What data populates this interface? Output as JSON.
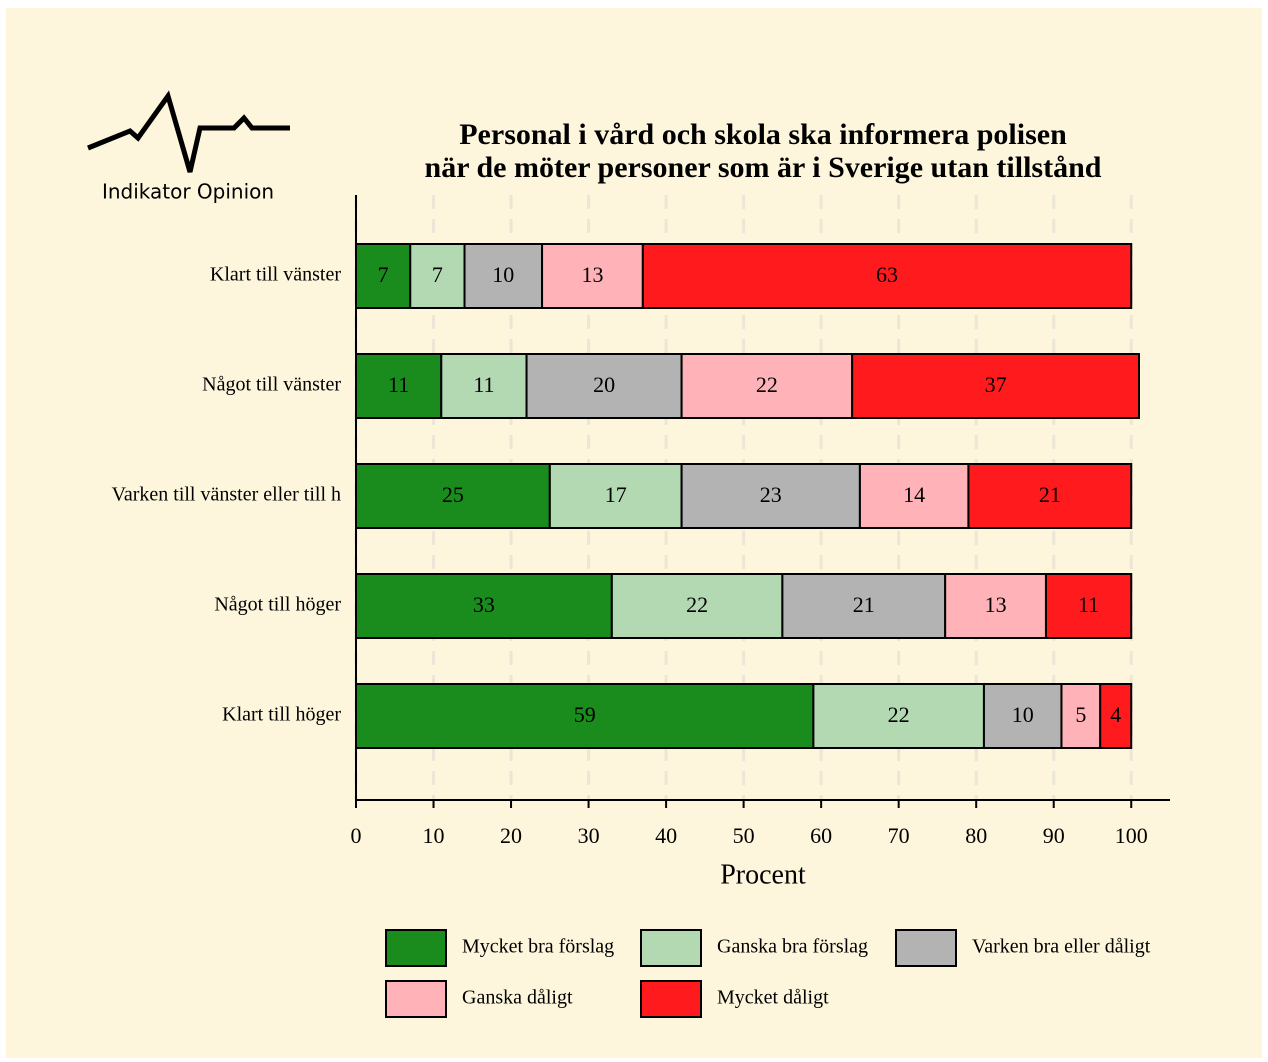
{
  "logo_text": "Indikator Opinion",
  "chart_data": {
    "type": "stacked-barh",
    "title": [
      "Personal i vård och skola ska informera polisen",
      "när de möter personer som är i Sverige utan tillstånd"
    ],
    "x_label": "Procent",
    "categories": [
      "Klart till vänster",
      "Något till vänster",
      "Varken till vänster eller till h",
      "Något till höger",
      "Klart till höger"
    ],
    "series": [
      {
        "name": "Mycket bra förslag",
        "color": "#1a8c1d",
        "values": [
          7,
          11,
          25,
          33,
          59
        ]
      },
      {
        "name": "Ganska bra förslag",
        "color": "#b3d9b3",
        "values": [
          7,
          11,
          17,
          22,
          22
        ]
      },
      {
        "name": "Varken bra eller dåligt",
        "color": "#b3b3b3",
        "values": [
          10,
          20,
          23,
          21,
          10
        ]
      },
      {
        "name": "Ganska dåligt",
        "color": "#ffb3b8",
        "values": [
          13,
          22,
          14,
          13,
          5
        ]
      },
      {
        "name": "Mycket dåligt",
        "color": "#ff1a1d",
        "values": [
          63,
          37,
          21,
          11,
          4
        ]
      }
    ],
    "xlim": [
      0,
      105
    ],
    "xticks": [
      0,
      10,
      20,
      30,
      40,
      50,
      60,
      70,
      80,
      90,
      100
    ],
    "grid": true,
    "legend": "bottom"
  }
}
